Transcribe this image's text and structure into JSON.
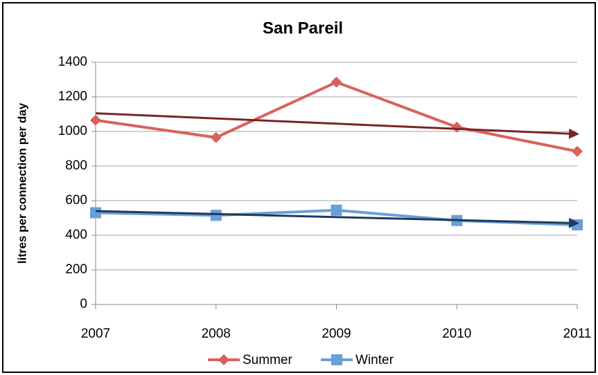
{
  "chart_data": {
    "type": "line",
    "title": "San Pareil",
    "y_label": "litres per connection per day",
    "x": [
      2007,
      2008,
      2009,
      2010,
      2011
    ],
    "xlim": [
      2007,
      2011
    ],
    "xticks": [
      2007,
      2008,
      2009,
      2010,
      2011
    ],
    "ylim": [
      0,
      1400
    ],
    "yticks": [
      0,
      200,
      400,
      600,
      800,
      1000,
      1200,
      1400
    ],
    "grid": true,
    "legend": "bottom",
    "series": [
      {
        "name": "Summer",
        "color": "#d9615c",
        "marker": "diamond",
        "values": [
          1065,
          965,
          1285,
          1025,
          885
        ]
      },
      {
        "name": "Winter",
        "color": "#6a9fd8",
        "marker": "square",
        "values": [
          530,
          515,
          545,
          485,
          460
        ]
      }
    ],
    "trend_lines": [
      {
        "color": "#7a2424",
        "values": [
          1105,
          985
        ]
      },
      {
        "color": "#1e3a5c",
        "values": [
          540,
          470
        ]
      }
    ]
  }
}
